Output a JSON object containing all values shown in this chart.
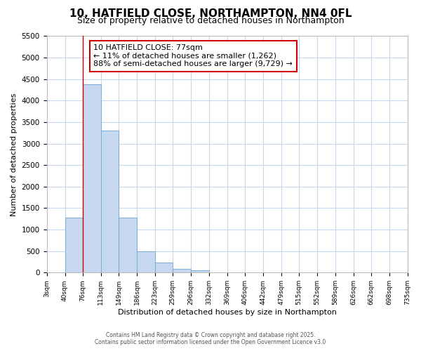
{
  "title": "10, HATFIELD CLOSE, NORTHAMPTON, NN4 0FL",
  "subtitle": "Size of property relative to detached houses in Northampton",
  "xlabel": "Distribution of detached houses by size in Northampton",
  "ylabel": "Number of detached properties",
  "bins": [
    3,
    40,
    76,
    113,
    149,
    186,
    223,
    259,
    296,
    332,
    369,
    406,
    442,
    479,
    515,
    552,
    589,
    626,
    662,
    698,
    735
  ],
  "bar_heights": [
    0,
    1280,
    4380,
    3300,
    1280,
    500,
    230,
    90,
    50,
    0,
    0,
    0,
    0,
    0,
    0,
    0,
    0,
    0,
    0,
    0
  ],
  "bar_color": "#c5d8f0",
  "bar_edge_color": "#7aaed6",
  "property_line_x": 76,
  "property_line_color": "#cc0000",
  "ylim": [
    0,
    5500
  ],
  "yticks": [
    0,
    500,
    1000,
    1500,
    2000,
    2500,
    3000,
    3500,
    4000,
    4500,
    5000,
    5500
  ],
  "annotation_title": "10 HATFIELD CLOSE: 77sqm",
  "annotation_line1": "← 11% of detached houses are smaller (1,262)",
  "annotation_line2": "88% of semi-detached houses are larger (9,729) →",
  "annotation_box_color": "#cc0000",
  "footer1": "Contains HM Land Registry data © Crown copyright and database right 2025.",
  "footer2": "Contains public sector information licensed under the Open Government Licence v3.0",
  "background_color": "#ffffff",
  "grid_color": "#c8d8ee",
  "title_fontsize": 11,
  "subtitle_fontsize": 9,
  "xlabel_fontsize": 8,
  "ylabel_fontsize": 8,
  "annotation_fontsize": 8
}
